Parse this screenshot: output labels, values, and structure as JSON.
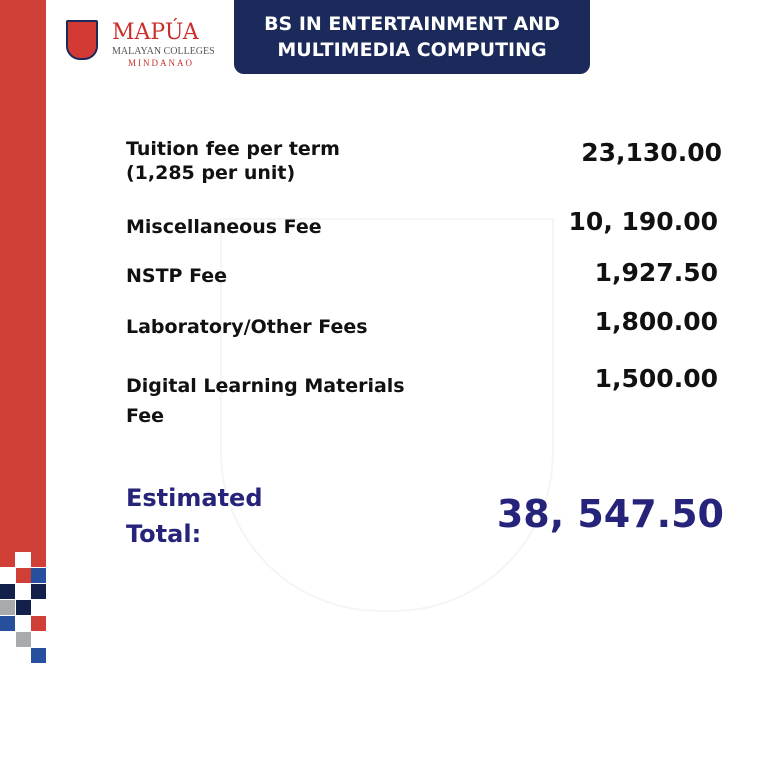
{
  "logo": {
    "name": "MAPÚA",
    "line2": "MALAYAN COLLEGES",
    "line3": "MINDANAO"
  },
  "header": {
    "line1": "BS IN ENTERTAINMENT AND",
    "line2": "MULTIMEDIA COMPUTING"
  },
  "fees": [
    {
      "label": "Tuition fee per term",
      "sub": "(1,285 per unit)",
      "value": "23,130.00"
    },
    {
      "label": "Miscellaneous Fee",
      "value": "10, 190.00"
    },
    {
      "label": "NSTP Fee",
      "value": "1,927.50"
    },
    {
      "label": "Laboratory/Other Fees",
      "value": "1,800.00"
    },
    {
      "label": "Digital Learning Materials",
      "sub": "Fee",
      "value": "1,500.00"
    }
  ],
  "total": {
    "label1": "Estimated",
    "label2": "Total:",
    "value": "38, 547.50"
  },
  "colors": {
    "red": "#cf3f35",
    "navy": "#1b2a5a",
    "total": "#26237a"
  }
}
